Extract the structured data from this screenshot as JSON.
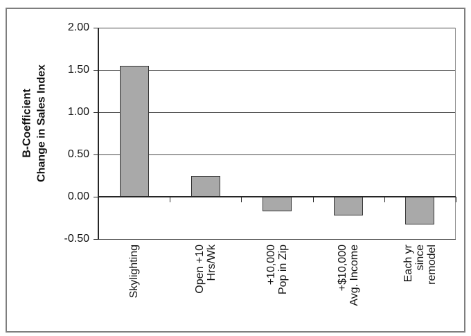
{
  "chart_data": {
    "type": "bar",
    "title": "",
    "ylabel": "B-Coefficient\nChange in Sales Index",
    "xlabel": "",
    "categories": [
      "Skylighting",
      "Open +10\nHrs/Wk",
      "+10,000\nPop in Zip",
      "+$10,000\nAvg. Income",
      "Each yr\nsince\nremodel"
    ],
    "values": [
      1.55,
      0.25,
      -0.17,
      -0.22,
      -0.33
    ],
    "yticks": [
      2.0,
      1.5,
      1.0,
      0.5,
      0.0,
      -0.5
    ],
    "ytick_labels": [
      "2.00",
      "1.50",
      "1.00",
      "0.50",
      "0.00",
      "-0.50"
    ],
    "ylim": [
      -0.5,
      2.0
    ],
    "grid": true,
    "legend": false,
    "colors": {
      "bar_fill": "#a9a9a9",
      "bar_border": "#333333",
      "gridline": "#454545",
      "axis": "#262626",
      "outer_border": "#7e7e7e",
      "text": "#111111"
    }
  }
}
